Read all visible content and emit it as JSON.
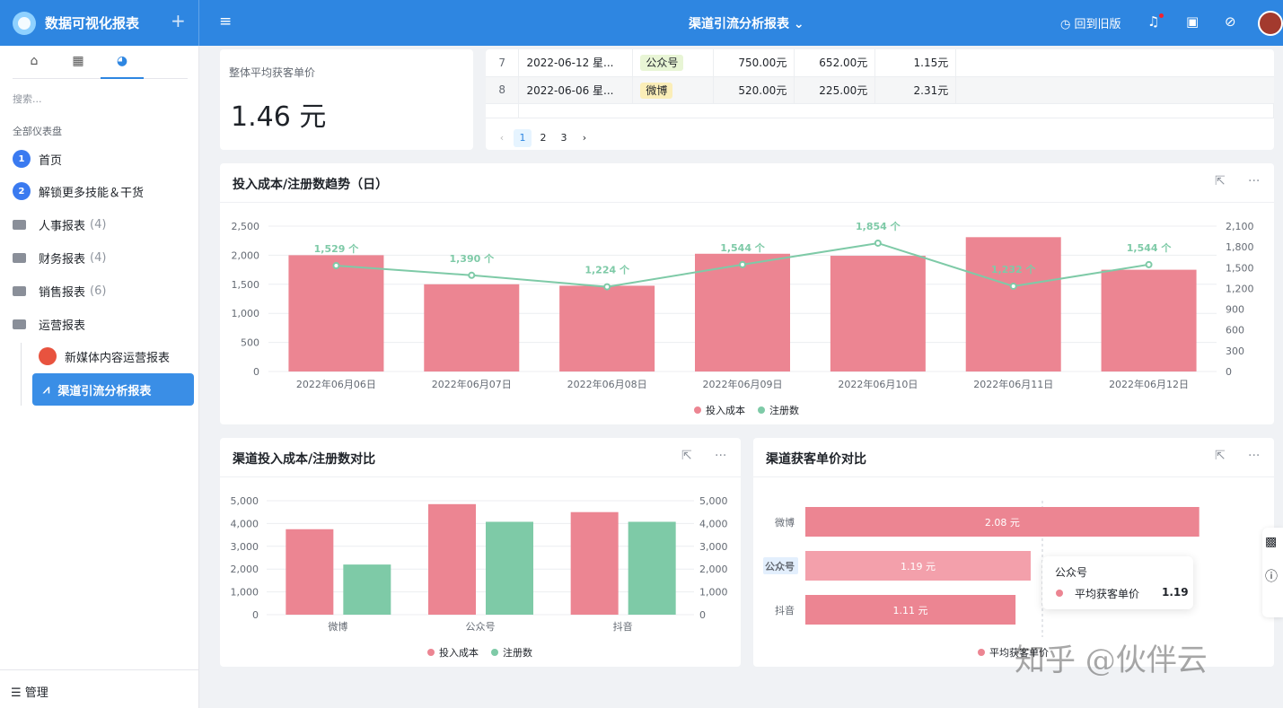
{
  "app": {
    "title": "数据可视化报表",
    "page_title": "渠道引流分析报表 ⌄",
    "back_old": "回到旧版"
  },
  "sidebar": {
    "search_placeholder": "搜索...",
    "all_boards": "全部仪表盘",
    "items": [
      {
        "label": "首页",
        "badge": "1"
      },
      {
        "label": "解锁更多技能＆干货",
        "badge": "2"
      },
      {
        "label": "人事报表",
        "count": "(4)"
      },
      {
        "label": "财务报表",
        "count": "(4)"
      },
      {
        "label": "销售报表",
        "count": "(6)"
      },
      {
        "label": "运营报表"
      }
    ],
    "sub_items": [
      {
        "label": "新媒体内容运营报表"
      },
      {
        "label": "渠道引流分析报表"
      }
    ],
    "manage": "管理"
  },
  "kpi": {
    "label": "整体平均获客单价",
    "value": "1.46 元"
  },
  "table": {
    "rows": [
      {
        "no": "7",
        "date": "2022-06-12 星...",
        "channel": "公众号",
        "cost": "750.00元",
        "reg": "652.00元",
        "unit": "1.15元"
      },
      {
        "no": "8",
        "date": "2022-06-06 星...",
        "channel": "微博",
        "cost": "520.00元",
        "reg": "225.00元",
        "unit": "2.31元"
      }
    ],
    "pages": [
      "1",
      "2",
      "3"
    ]
  },
  "trend": {
    "title": "投入成本/注册数趋势（日）",
    "legend": [
      "投入成本",
      "注册数"
    ],
    "colors": {
      "bar": "#ec8592",
      "line": "#7ecaa7"
    }
  },
  "compare": {
    "title": "渠道投入成本/注册数对比",
    "legend": [
      "投入成本",
      "注册数"
    ]
  },
  "unit_price": {
    "title": "渠道获客单价对比",
    "legend": "平均获客单价",
    "tooltip": {
      "channel": "公众号",
      "label": "平均获客单价",
      "value": "1.19"
    }
  },
  "watermark": "知乎 @伙伴云",
  "chart_data": [
    {
      "type": "bar",
      "title": "投入成本/注册数趋势（日）",
      "categories": [
        "2022年06月06日",
        "2022年06月07日",
        "2022年06月08日",
        "2022年06月09日",
        "2022年06月10日",
        "2022年06月11日",
        "2022年06月12日"
      ],
      "series": [
        {
          "name": "投入成本",
          "type": "bar",
          "values": [
            2000,
            1500,
            1475,
            2025,
            1990,
            2310,
            1750
          ]
        },
        {
          "name": "注册数",
          "type": "line",
          "axis": "right",
          "values": [
            1529,
            1390,
            1224,
            1544,
            1854,
            1232,
            1544
          ],
          "labels": [
            "1,529 个",
            "1,390 个",
            "1,224 个",
            "1,544 个",
            "1,854 个",
            "1,232 个",
            "1,544 个"
          ]
        }
      ],
      "ylim": [
        0,
        2500
      ],
      "yticks": [
        "0",
        "500",
        "1,000",
        "1,500",
        "2,000",
        "2,500"
      ],
      "y2lim": [
        0,
        2100
      ],
      "y2ticks": [
        "0",
        "300",
        "600",
        "900",
        "1,200",
        "1,500",
        "1,800",
        "2,100"
      ],
      "grid": true,
      "legend_position": "bottom"
    },
    {
      "type": "bar",
      "title": "渠道投入成本/注册数对比",
      "categories": [
        "微博",
        "公众号",
        "抖音"
      ],
      "series": [
        {
          "name": "投入成本",
          "values": [
            3750,
            4850,
            4500
          ]
        },
        {
          "name": "注册数",
          "values": [
            2200,
            4075,
            4075
          ]
        }
      ],
      "ylim": [
        0,
        5000
      ],
      "yticks": [
        "0",
        "1,000",
        "2,000",
        "3,000",
        "4,000",
        "5,000"
      ],
      "grid": true,
      "legend_position": "bottom"
    },
    {
      "type": "bar",
      "orientation": "horizontal",
      "title": "渠道获客单价对比",
      "categories": [
        "微博",
        "公众号",
        "抖音"
      ],
      "series": [
        {
          "name": "平均获客单价",
          "values": [
            2.08,
            1.19,
            1.11
          ],
          "labels": [
            "2.08 元",
            "1.19 元",
            "1.11 元"
          ]
        }
      ],
      "legend_position": "bottom"
    }
  ]
}
